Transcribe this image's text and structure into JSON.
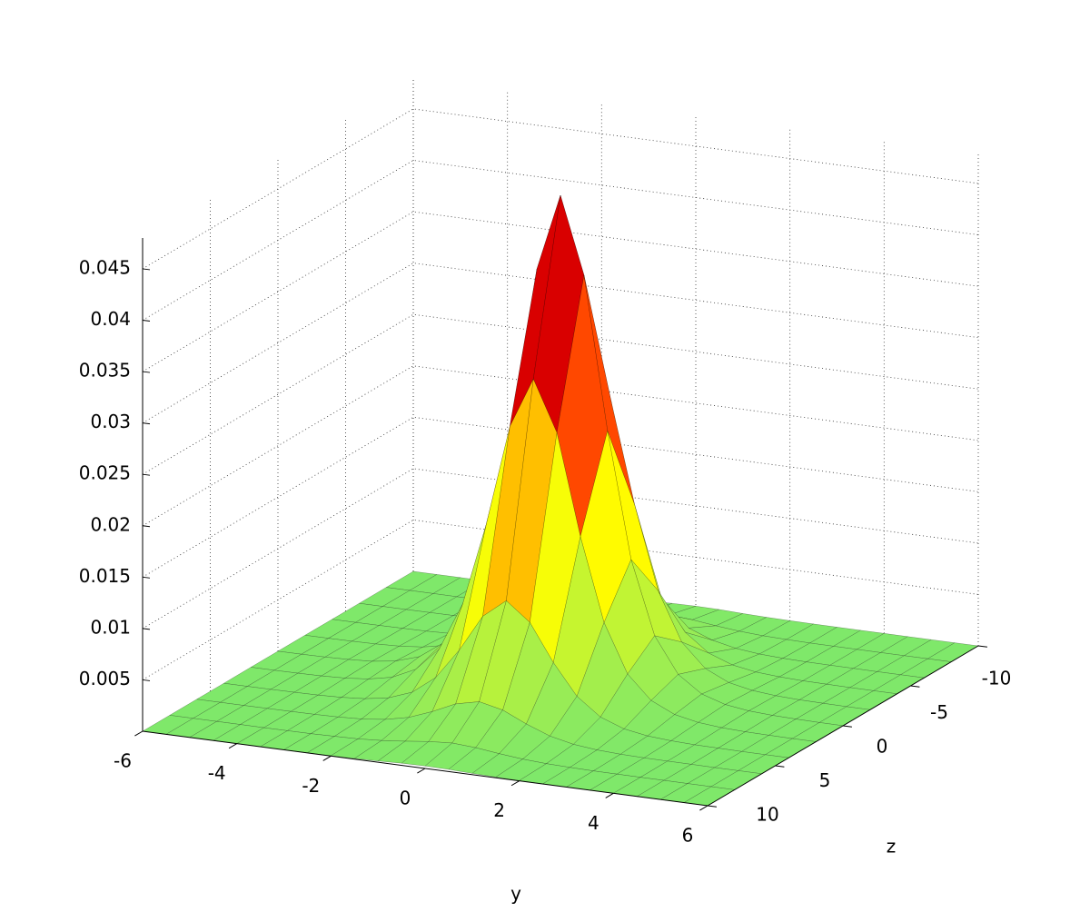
{
  "chart_data": {
    "type": "surface",
    "xlabel": "y",
    "ylabel": "z",
    "x": [
      -6,
      -5.5,
      -5,
      -4.5,
      -4,
      -3.5,
      -3,
      -2.5,
      -2,
      -1.5,
      -1,
      -0.5,
      0,
      0.5,
      1,
      1.5,
      2,
      2.5,
      3,
      3.5,
      4,
      4.5,
      5,
      5.5,
      6
    ],
    "y": [
      -10,
      -8,
      -6,
      -4,
      -2,
      0,
      2,
      4,
      6,
      8,
      10
    ],
    "values": [
      [
        0,
        0,
        0,
        0,
        0,
        0,
        1e-05,
        2e-05,
        3e-05,
        7e-05,
        0.00013,
        0.00021,
        0.00024,
        0.00021,
        0.00013,
        7e-05,
        3e-05,
        2e-05,
        1e-05,
        0,
        0,
        0,
        0,
        0,
        0
      ],
      [
        0,
        0,
        0,
        0,
        0,
        1e-05,
        2e-05,
        6e-05,
        0.00012,
        0.00026,
        0.00049,
        0.00077,
        0.00092,
        0.00077,
        0.00049,
        0.00026,
        0.00012,
        6e-05,
        2e-05,
        1e-05,
        0,
        0,
        0,
        0,
        0
      ],
      [
        0,
        0,
        0,
        1e-05,
        2e-05,
        4e-05,
        9e-05,
        0.0002,
        0.00045,
        0.00095,
        0.00182,
        0.00287,
        0.00339,
        0.00287,
        0.00182,
        0.00095,
        0.00045,
        0.0002,
        9e-05,
        4e-05,
        2e-05,
        1e-05,
        0,
        0,
        0
      ],
      [
        0,
        0,
        1e-05,
        3e-05,
        6e-05,
        0.00014,
        0.00031,
        0.0007,
        0.00154,
        0.00327,
        0.00624,
        0.00985,
        0.01166,
        0.00985,
        0.00624,
        0.00327,
        0.00154,
        0.0007,
        0.00031,
        0.00014,
        6e-05,
        3e-05,
        1e-05,
        0,
        0
      ],
      [
        1e-05,
        1e-05,
        3e-05,
        7e-05,
        0.00016,
        0.00037,
        0.00084,
        0.00191,
        0.00418,
        0.00888,
        0.01695,
        0.02675,
        0.03168,
        0.02675,
        0.01695,
        0.00888,
        0.00418,
        0.00191,
        0.00084,
        0.00037,
        0.00016,
        7e-05,
        3e-05,
        1e-05,
        1e-05
      ],
      [
        1e-05,
        2e-05,
        5e-05,
        0.00011,
        0.00024,
        0.00056,
        0.00128,
        0.00289,
        0.00634,
        0.01346,
        0.02568,
        0.04054,
        0.048,
        0.04054,
        0.02568,
        0.01346,
        0.00634,
        0.00289,
        0.00128,
        0.00056,
        0.00024,
        0.00011,
        5e-05,
        2e-05,
        1e-05
      ],
      [
        1e-05,
        1e-05,
        3e-05,
        7e-05,
        0.00016,
        0.00037,
        0.00084,
        0.00191,
        0.00418,
        0.00888,
        0.01695,
        0.02675,
        0.03168,
        0.02675,
        0.01695,
        0.00888,
        0.00418,
        0.00191,
        0.00084,
        0.00037,
        0.00016,
        7e-05,
        3e-05,
        1e-05,
        1e-05
      ],
      [
        0,
        0,
        1e-05,
        3e-05,
        6e-05,
        0.00014,
        0.00031,
        0.0007,
        0.00154,
        0.00327,
        0.00624,
        0.00985,
        0.01166,
        0.00985,
        0.00624,
        0.00327,
        0.00154,
        0.0007,
        0.00031,
        0.00014,
        6e-05,
        3e-05,
        1e-05,
        0,
        0
      ],
      [
        0,
        0,
        0,
        1e-05,
        2e-05,
        4e-05,
        9e-05,
        0.0002,
        0.00045,
        0.00095,
        0.00182,
        0.00287,
        0.00339,
        0.00287,
        0.00182,
        0.00095,
        0.00045,
        0.0002,
        9e-05,
        4e-05,
        2e-05,
        1e-05,
        0,
        0,
        0
      ],
      [
        0,
        0,
        0,
        0,
        0,
        1e-05,
        2e-05,
        6e-05,
        0.00012,
        0.00026,
        0.00049,
        0.00077,
        0.00092,
        0.00077,
        0.00049,
        0.00026,
        0.00012,
        6e-05,
        2e-05,
        1e-05,
        0,
        0,
        0,
        0,
        0
      ],
      [
        0,
        0,
        0,
        0,
        0,
        0,
        1e-05,
        2e-05,
        3e-05,
        7e-05,
        0.00013,
        0.00021,
        0.00024,
        0.00021,
        0.00013,
        7e-05,
        3e-05,
        2e-05,
        1e-05,
        0,
        0,
        0,
        0,
        0,
        0
      ]
    ],
    "xlim": [
      -6,
      6
    ],
    "xticks": [
      -6,
      -4,
      -2,
      0,
      2,
      4,
      6
    ],
    "ylim": [
      -10,
      10
    ],
    "yticks": [
      -10,
      -5,
      0,
      5,
      10
    ],
    "zlim": [
      0,
      0.048
    ],
    "zticks": [
      0.005,
      0.01,
      0.015,
      0.02,
      0.025,
      0.03,
      0.035,
      0.04,
      0.045
    ],
    "grid": true,
    "colormap": [
      "#7fe86a",
      "#ffff00",
      "#ff0000",
      "#800000"
    ],
    "edge_color": "#000000"
  }
}
